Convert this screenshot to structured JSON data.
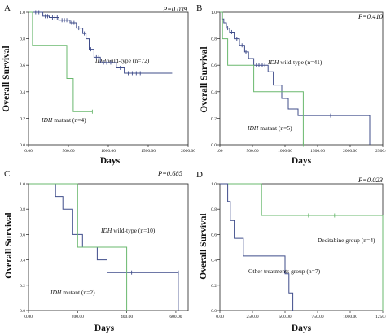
{
  "chart_data": [
    {
      "type": "line",
      "panel_label": "A",
      "p_value": "P=0.039",
      "xlabel": "Days",
      "ylabel": "Overall Survival",
      "xlim": [
        0,
        2000
      ],
      "ylim": [
        0,
        1.0
      ],
      "x_ticks": [
        "0.00",
        "500.00",
        "1000.00",
        "1500.00",
        "2000.00"
      ],
      "x_tick_values": [
        0,
        500,
        1000,
        1500,
        2000
      ],
      "y_ticks": [
        "0.0",
        "0.2",
        "0.4",
        "0.6",
        "0.8",
        "1.0"
      ],
      "y_tick_values": [
        0,
        0.2,
        0.4,
        0.6,
        0.8,
        1.0
      ],
      "series": [
        {
          "gene": "IDH",
          "label": " wild-type (n=72)",
          "color": "#3f4c8a",
          "steps": [
            [
              0,
              1.0
            ],
            [
              180,
              1.0
            ],
            [
              180,
              0.97
            ],
            [
              260,
              0.97
            ],
            [
              260,
              0.96
            ],
            [
              380,
              0.96
            ],
            [
              380,
              0.94
            ],
            [
              520,
              0.94
            ],
            [
              520,
              0.92
            ],
            [
              600,
              0.92
            ],
            [
              600,
              0.88
            ],
            [
              680,
              0.88
            ],
            [
              680,
              0.84
            ],
            [
              720,
              0.84
            ],
            [
              720,
              0.8
            ],
            [
              760,
              0.8
            ],
            [
              760,
              0.72
            ],
            [
              820,
              0.72
            ],
            [
              820,
              0.66
            ],
            [
              900,
              0.66
            ],
            [
              900,
              0.62
            ],
            [
              1100,
              0.62
            ],
            [
              1100,
              0.58
            ],
            [
              1200,
              0.58
            ],
            [
              1200,
              0.54
            ],
            [
              1800,
              0.54
            ]
          ],
          "censored": [
            [
              90,
              1.0
            ],
            [
              130,
              1.0
            ],
            [
              210,
              0.97
            ],
            [
              240,
              0.97
            ],
            [
              300,
              0.96
            ],
            [
              330,
              0.96
            ],
            [
              360,
              0.96
            ],
            [
              420,
              0.94
            ],
            [
              450,
              0.94
            ],
            [
              480,
              0.94
            ],
            [
              540,
              0.92
            ],
            [
              570,
              0.92
            ],
            [
              630,
              0.88
            ],
            [
              700,
              0.84
            ],
            [
              780,
              0.72
            ],
            [
              850,
              0.66
            ],
            [
              880,
              0.66
            ],
            [
              940,
              0.62
            ],
            [
              980,
              0.62
            ],
            [
              1030,
              0.62
            ],
            [
              1150,
              0.58
            ],
            [
              1250,
              0.54
            ],
            [
              1300,
              0.54
            ],
            [
              1350,
              0.54
            ],
            [
              1400,
              0.54
            ]
          ]
        },
        {
          "gene": "IDH",
          "label": " mutant (n=4)",
          "color": "#6ab86e",
          "steps": [
            [
              0,
              1.0
            ],
            [
              50,
              1.0
            ],
            [
              50,
              0.75
            ],
            [
              480,
              0.75
            ],
            [
              480,
              0.5
            ],
            [
              560,
              0.5
            ],
            [
              560,
              0.25
            ],
            [
              800,
              0.25
            ]
          ],
          "censored": [
            [
              800,
              0.25
            ]
          ]
        }
      ]
    },
    {
      "type": "line",
      "panel_label": "B",
      "p_value": "P=0.410",
      "xlabel": "Days",
      "ylabel": "Overall Survival",
      "xlim": [
        0,
        2500
      ],
      "ylim": [
        0,
        1.0
      ],
      "x_ticks": [
        ".00",
        "500.00",
        "1000.00",
        "1500.00",
        "2000.00",
        "2500.00"
      ],
      "x_tick_values": [
        0,
        500,
        1000,
        1500,
        2000,
        2500
      ],
      "y_ticks": [
        "0.0",
        "0.2",
        "0.4",
        "0.6",
        "0.8",
        "1.0"
      ],
      "y_tick_values": [
        0,
        0.2,
        0.4,
        0.6,
        0.8,
        1.0
      ],
      "series": [
        {
          "gene": "IDH",
          "label": " wild-type (n=41)",
          "color": "#3f4c8a",
          "steps": [
            [
              0,
              1.0
            ],
            [
              30,
              1.0
            ],
            [
              30,
              0.95
            ],
            [
              60,
              0.95
            ],
            [
              60,
              0.92
            ],
            [
              100,
              0.92
            ],
            [
              100,
              0.88
            ],
            [
              150,
              0.88
            ],
            [
              150,
              0.85
            ],
            [
              220,
              0.85
            ],
            [
              220,
              0.8
            ],
            [
              300,
              0.8
            ],
            [
              300,
              0.75
            ],
            [
              380,
              0.75
            ],
            [
              380,
              0.7
            ],
            [
              440,
              0.7
            ],
            [
              440,
              0.65
            ],
            [
              520,
              0.65
            ],
            [
              520,
              0.6
            ],
            [
              740,
              0.6
            ],
            [
              740,
              0.55
            ],
            [
              820,
              0.55
            ],
            [
              820,
              0.45
            ],
            [
              950,
              0.45
            ],
            [
              950,
              0.35
            ],
            [
              1050,
              0.35
            ],
            [
              1050,
              0.27
            ],
            [
              1200,
              0.27
            ],
            [
              1200,
              0.22
            ],
            [
              2300,
              0.22
            ],
            [
              2300,
              0.0
            ]
          ],
          "censored": [
            [
              120,
              0.88
            ],
            [
              180,
              0.85
            ],
            [
              260,
              0.8
            ],
            [
              340,
              0.75
            ],
            [
              400,
              0.7
            ],
            [
              560,
              0.6
            ],
            [
              600,
              0.6
            ],
            [
              650,
              0.6
            ],
            [
              690,
              0.6
            ],
            [
              1700,
              0.22
            ]
          ]
        },
        {
          "gene": "IDH",
          "label": " mutant (n=5)",
          "color": "#6ab86e",
          "steps": [
            [
              0,
              1.0
            ],
            [
              40,
              1.0
            ],
            [
              40,
              0.8
            ],
            [
              120,
              0.8
            ],
            [
              120,
              0.6
            ],
            [
              520,
              0.6
            ],
            [
              520,
              0.4
            ],
            [
              1280,
              0.4
            ],
            [
              1280,
              0.0
            ]
          ],
          "censored": [
            [
              1280,
              0.0
            ]
          ]
        }
      ]
    },
    {
      "type": "line",
      "panel_label": "C",
      "p_value": "P=0.685",
      "xlabel": "Days",
      "ylabel": "Overall Survival",
      "xlim": [
        0,
        650
      ],
      "ylim": [
        0,
        1.0
      ],
      "x_ticks": [
        "0.00",
        "200.00",
        "400.00",
        "600.00"
      ],
      "x_tick_values": [
        0,
        200,
        400,
        600
      ],
      "y_ticks": [
        "0.0",
        "0.2",
        "0.4",
        "0.6",
        "0.8",
        "1.0"
      ],
      "y_tick_values": [
        0,
        0.2,
        0.4,
        0.6,
        0.8,
        1.0
      ],
      "series": [
        {
          "gene": "IDH",
          "label": " wild-type (n=10)",
          "color": "#3f4c8a",
          "steps": [
            [
              0,
              1.0
            ],
            [
              110,
              1.0
            ],
            [
              110,
              0.9
            ],
            [
              140,
              0.9
            ],
            [
              140,
              0.8
            ],
            [
              180,
              0.8
            ],
            [
              180,
              0.6
            ],
            [
              220,
              0.6
            ],
            [
              220,
              0.5
            ],
            [
              280,
              0.5
            ],
            [
              280,
              0.4
            ],
            [
              320,
              0.4
            ],
            [
              320,
              0.3
            ],
            [
              610,
              0.3
            ],
            [
              610,
              0.0
            ]
          ],
          "censored": [
            [
              420,
              0.3
            ],
            [
              610,
              0.3
            ]
          ]
        },
        {
          "gene": "IDH",
          "label": " mutant (n=2)",
          "color": "#6ab86e",
          "steps": [
            [
              0,
              1.0
            ],
            [
              200,
              1.0
            ],
            [
              200,
              0.5
            ],
            [
              400,
              0.5
            ],
            [
              400,
              0.0
            ]
          ],
          "censored": []
        }
      ]
    },
    {
      "type": "line",
      "panel_label": "D",
      "p_value": "P=0.023",
      "xlabel": "Days",
      "ylabel": "Overall Survival",
      "xlim": [
        0,
        1250
      ],
      "ylim": [
        0,
        1.0
      ],
      "x_ticks": [
        "0.00",
        "250.00",
        "500.00",
        "750.00",
        "1000.00",
        "1250.00"
      ],
      "x_tick_values": [
        0,
        250,
        500,
        750,
        1000,
        1250
      ],
      "y_ticks": [
        "0.0",
        "0.2",
        "0.4",
        "0.6",
        "0.8",
        "1.0"
      ],
      "y_tick_values": [
        0,
        0.2,
        0.4,
        0.6,
        0.8,
        1.0
      ],
      "series": [
        {
          "label": "Decitabine group (n=4)",
          "color": "#6ab86e",
          "steps": [
            [
              0,
              1.0
            ],
            [
              320,
              1.0
            ],
            [
              320,
              0.75
            ],
            [
              1250,
              0.75
            ],
            [
              1250,
              0.0
            ]
          ],
          "censored": [
            [
              680,
              0.75
            ],
            [
              880,
              0.75
            ]
          ]
        },
        {
          "label": "Other treatments group (n=7)",
          "color": "#3f4c8a",
          "steps": [
            [
              0,
              1.0
            ],
            [
              60,
              1.0
            ],
            [
              60,
              0.86
            ],
            [
              80,
              0.86
            ],
            [
              80,
              0.71
            ],
            [
              110,
              0.71
            ],
            [
              110,
              0.57
            ],
            [
              180,
              0.57
            ],
            [
              180,
              0.43
            ],
            [
              500,
              0.43
            ],
            [
              500,
              0.29
            ],
            [
              530,
              0.29
            ],
            [
              530,
              0.14
            ],
            [
              560,
              0.14
            ],
            [
              560,
              0.0
            ]
          ],
          "censored": []
        }
      ]
    }
  ]
}
